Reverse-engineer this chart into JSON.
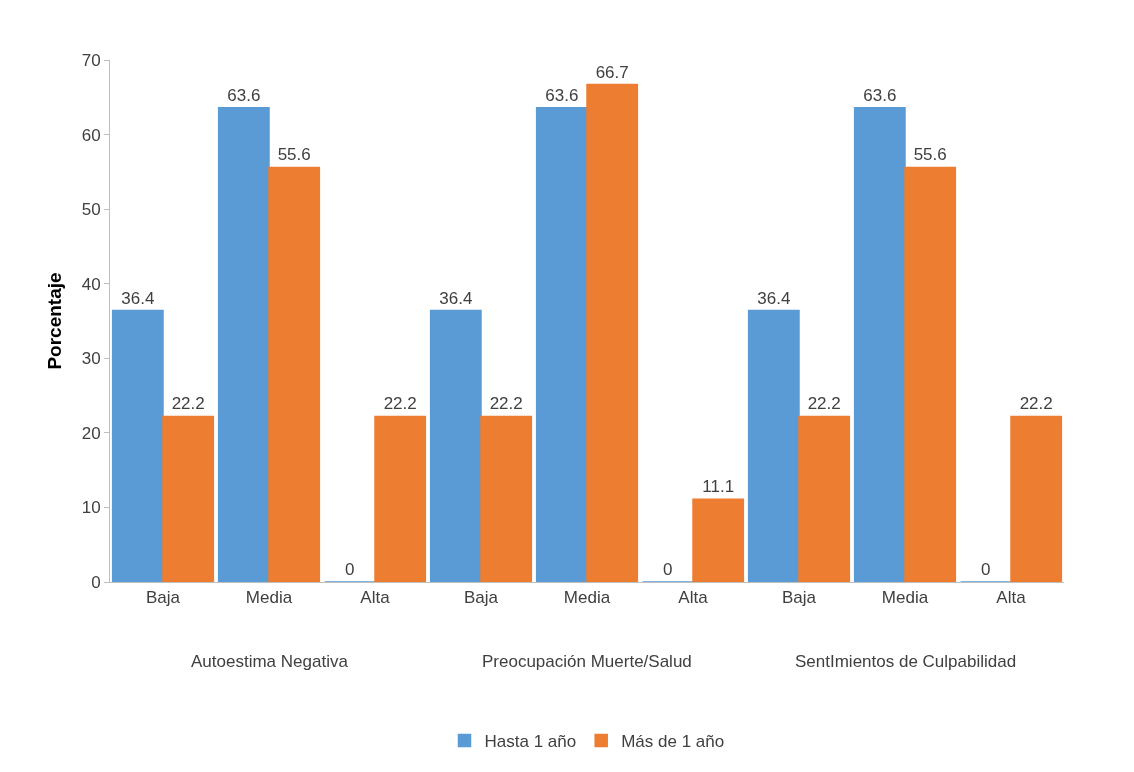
{
  "chart_data": {
    "type": "bar",
    "ylabel": "Porcentaje",
    "categories": [
      "Baja",
      "Media",
      "Alta",
      "Baja",
      "Media",
      "Alta",
      "Baja",
      "Media",
      "Alta"
    ],
    "series": [
      {
        "name": "Hasta 1 año",
        "color": "#5b9bd5",
        "values": [
          36.4,
          63.6,
          0,
          36.4,
          63.6,
          0,
          36.4,
          63.6,
          0
        ]
      },
      {
        "name": "Más de 1 año",
        "color": "#ed7d31",
        "values": [
          22.2,
          55.6,
          22.2,
          22.2,
          66.7,
          11.1,
          22.2,
          55.6,
          22.2
        ]
      }
    ],
    "annotations": [
      "Autoestima Negativa",
      "Preocupación Muerte/Salud",
      "SentImientos de Culpabilidad"
    ],
    "ylim": [
      0,
      70
    ],
    "yticks": [
      0,
      10,
      20,
      30,
      40,
      50,
      60,
      70
    ],
    "data_labels": true,
    "legend": "bottom"
  }
}
